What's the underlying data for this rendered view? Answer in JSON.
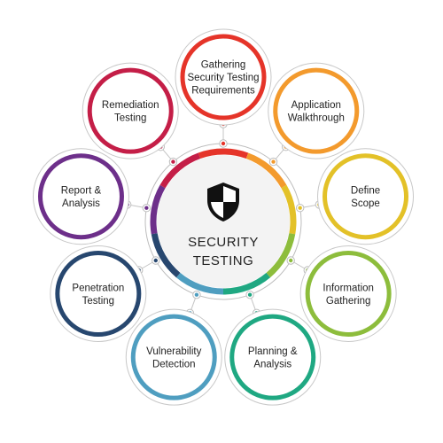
{
  "center": {
    "line1": "SECURITY",
    "line2": "TESTING",
    "icon": "shield-icon"
  },
  "nodes": [
    {
      "id": "gathering-requirements",
      "lines": [
        "Gathering",
        "Security Testing",
        "Requirements"
      ],
      "color": "#e53429"
    },
    {
      "id": "application-walkthrough",
      "lines": [
        "Application",
        "Walkthrough"
      ],
      "color": "#f39a2d"
    },
    {
      "id": "define-scope",
      "lines": [
        "Define",
        "Scope"
      ],
      "color": "#e3c128"
    },
    {
      "id": "information-gathering",
      "lines": [
        "Information",
        "Gathering"
      ],
      "color": "#8dbd3c"
    },
    {
      "id": "planning-analysis",
      "lines": [
        "Planning &",
        "Analysis"
      ],
      "color": "#1fa882"
    },
    {
      "id": "vulnerability-detection",
      "lines": [
        "Vulnerability",
        "Detection"
      ],
      "color": "#4f9ec0"
    },
    {
      "id": "penetration-testing",
      "lines": [
        "Penetration",
        "Testing"
      ],
      "color": "#27476f"
    },
    {
      "id": "report-analysis",
      "lines": [
        "Report &",
        "Analysis"
      ],
      "color": "#6d2f8a"
    },
    {
      "id": "remediation-testing",
      "lines": [
        "Remediation",
        "Testing"
      ],
      "color": "#c41e47"
    }
  ]
}
